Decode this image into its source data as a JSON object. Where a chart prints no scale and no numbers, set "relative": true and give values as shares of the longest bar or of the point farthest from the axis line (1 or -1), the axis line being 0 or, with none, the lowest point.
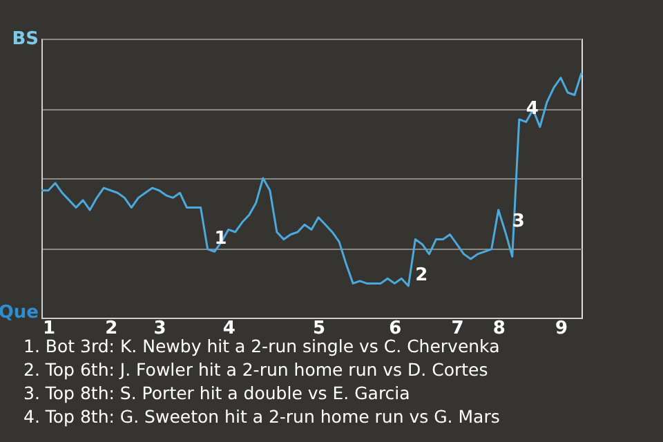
{
  "chart_data": {
    "type": "line",
    "relative": true,
    "categories": [
      null,
      "1",
      null,
      null,
      null,
      null,
      null,
      null,
      null,
      null,
      "2",
      null,
      null,
      null,
      null,
      null,
      null,
      "3",
      null,
      null,
      null,
      null,
      null,
      null,
      null,
      null,
      null,
      "4",
      null,
      null,
      null,
      null,
      null,
      null,
      null,
      null,
      null,
      null,
      null,
      null,
      "5",
      null,
      null,
      null,
      null,
      null,
      null,
      null,
      null,
      null,
      null,
      "6",
      null,
      null,
      null,
      null,
      null,
      null,
      null,
      null,
      "7",
      null,
      null,
      null,
      null,
      null,
      "8",
      null,
      null,
      null,
      null,
      null,
      null,
      null,
      null,
      "9",
      null,
      null,
      null
    ],
    "series": [
      {
        "color": "#4ba9dc",
        "values": [
          0.52,
          0.52,
          0.55,
          0.51,
          0.48,
          0.45,
          0.48,
          0.44,
          0.49,
          0.53,
          0.52,
          0.51,
          0.49,
          0.45,
          0.49,
          0.51,
          0.53,
          0.52,
          0.5,
          0.49,
          0.51,
          0.45,
          0.45,
          0.45,
          0.28,
          0.27,
          0.31,
          0.36,
          0.35,
          0.39,
          0.42,
          0.47,
          0.57,
          0.52,
          0.35,
          0.32,
          0.34,
          0.35,
          0.38,
          0.36,
          0.41,
          0.38,
          0.35,
          0.31,
          0.22,
          0.14,
          0.15,
          0.14,
          0.14,
          0.14,
          0.16,
          0.14,
          0.16,
          0.13,
          0.32,
          0.3,
          0.26,
          0.32,
          0.32,
          0.34,
          0.3,
          0.26,
          0.24,
          0.26,
          0.27,
          0.28,
          0.44,
          0.35,
          0.25,
          0.81,
          0.8,
          0.85,
          0.78,
          0.88,
          0.94,
          0.98,
          0.92,
          0.91,
          1
        ]
      }
    ],
    "value_labels": [
      null,
      null,
      null,
      null,
      null,
      null,
      null,
      null,
      null,
      null,
      null,
      null,
      null,
      null,
      null,
      null,
      null,
      null,
      null,
      null,
      null,
      null,
      null,
      null,
      "1",
      null,
      null,
      null,
      null,
      null,
      null,
      null,
      null,
      null,
      null,
      null,
      null,
      null,
      null,
      null,
      null,
      null,
      null,
      null,
      null,
      null,
      null,
      null,
      null,
      null,
      null,
      null,
      null,
      "2",
      null,
      null,
      null,
      null,
      null,
      null,
      null,
      null,
      null,
      null,
      null,
      null,
      null,
      "3",
      null,
      "4",
      null,
      null,
      null,
      null,
      null,
      null,
      null,
      null,
      null
    ],
    "grid": "y",
    "marker": "none",
    "line_style": "solid",
    "annotations": [
      "BS",
      "Que",
      "1. Bot 3rd: K. Newby hit a 2-run single vs C. Chervenka",
      "2. Top 6th: J. Fowler hit a 2-run home run vs D. Cortes",
      "3. Top 8th: S. Porter hit a double vs E. Garcia",
      "4. Top 8th: G. Sweeton hit a 2-run home run vs G. Mars"
    ]
  }
}
